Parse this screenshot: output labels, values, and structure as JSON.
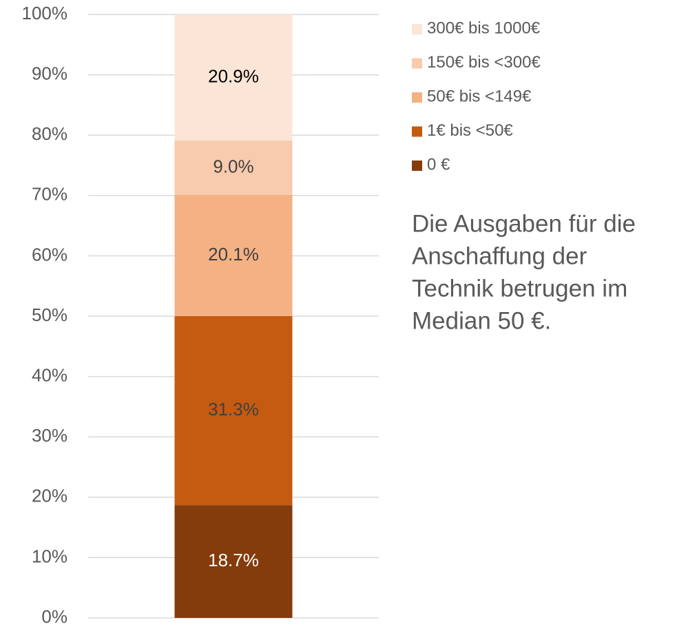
{
  "chart_data": {
    "type": "stacked_bar",
    "categories": [
      null
    ],
    "series": [
      {
        "name": "0 €",
        "color": "#843c0c",
        "values": [
          18.7
        ],
        "value_labels": [
          "18.7%"
        ]
      },
      {
        "name": "1€ bis <50€",
        "color": "#c55a11",
        "values": [
          31.3
        ],
        "value_labels": [
          "31.3%"
        ]
      },
      {
        "name": "50€ bis <149€",
        "color": "#f4b183",
        "values": [
          20.1
        ],
        "value_labels": [
          "20.1%"
        ]
      },
      {
        "name": "150€ bis <300€",
        "color": "#f8cbad",
        "values": [
          9.0
        ],
        "value_labels": [
          "9.0%"
        ]
      },
      {
        "name": "300€ bis 1000€",
        "color": "#fbe5d6",
        "values": [
          20.9
        ],
        "value_labels": [
          "20.9%"
        ]
      }
    ],
    "ylim": [
      0,
      100
    ],
    "yticks": [
      {
        "value": 0,
        "label": "0%"
      },
      {
        "value": 10,
        "label": "10%"
      },
      {
        "value": 20,
        "label": "20%"
      },
      {
        "value": 30,
        "label": "30%"
      },
      {
        "value": 40,
        "label": "40%"
      },
      {
        "value": 50,
        "label": "50%"
      },
      {
        "value": 60,
        "label": "60%"
      },
      {
        "value": 70,
        "label": "70%"
      },
      {
        "value": 80,
        "label": "80%"
      },
      {
        "value": 90,
        "label": "90%"
      },
      {
        "value": 100,
        "label": "100%"
      }
    ],
    "grid": true,
    "legend": "right",
    "annotation": [
      "Die Ausgaben für die",
      "Anschaffung der",
      "Technik betrugen im",
      "Median 50 €."
    ]
  }
}
